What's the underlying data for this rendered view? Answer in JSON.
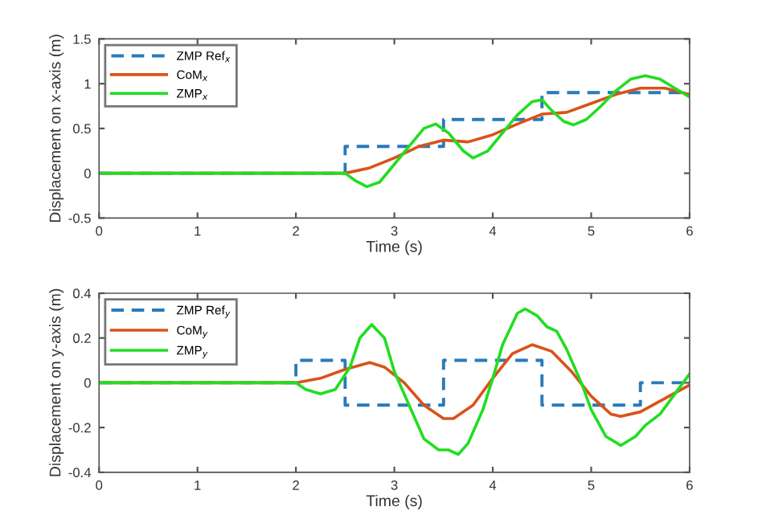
{
  "chart_data": [
    {
      "type": "line",
      "xlabel": "Time (s)",
      "ylabel": "Displacement on x-axis (m)",
      "xlim": [
        0,
        6
      ],
      "xticks": [
        0,
        1,
        2,
        3,
        4,
        5,
        6
      ],
      "ylim": [
        -0.5,
        1.5
      ],
      "yticks": [
        -0.5,
        0,
        0.5,
        1,
        1.5
      ],
      "grid": false,
      "legend": "top left",
      "series": [
        {
          "name": "ZMP Ref$_{x}$",
          "type": "step",
          "line_style": "dashed",
          "color": "#2a7ab8",
          "x": [
            0,
            2.5,
            3.5,
            4.5,
            6
          ],
          "values": [
            0,
            0.3,
            0.6,
            0.9,
            0.9
          ]
        },
        {
          "name": "CoM$_{x}$",
          "line_style": "solid",
          "color": "#d95319",
          "x": [
            0,
            2.5,
            2.75,
            3.0,
            3.25,
            3.5,
            3.75,
            4.0,
            4.25,
            4.5,
            4.75,
            5.0,
            5.25,
            5.5,
            5.75,
            6.0
          ],
          "values": [
            0,
            0,
            0.06,
            0.17,
            0.3,
            0.37,
            0.35,
            0.43,
            0.55,
            0.66,
            0.68,
            0.78,
            0.88,
            0.95,
            0.95,
            0.88
          ]
        },
        {
          "name": "ZMP$_{x}$",
          "line_style": "solid",
          "color": "#22dd22",
          "x": [
            0,
            2.5,
            2.6,
            2.72,
            2.85,
            3.0,
            3.15,
            3.3,
            3.42,
            3.55,
            3.7,
            3.8,
            3.95,
            4.1,
            4.25,
            4.4,
            4.5,
            4.6,
            4.72,
            4.82,
            4.95,
            5.1,
            5.25,
            5.4,
            5.55,
            5.7,
            5.85,
            6.0
          ],
          "values": [
            0,
            0,
            -0.08,
            -0.15,
            -0.1,
            0.1,
            0.3,
            0.5,
            0.55,
            0.45,
            0.25,
            0.17,
            0.25,
            0.45,
            0.65,
            0.8,
            0.82,
            0.7,
            0.58,
            0.54,
            0.6,
            0.75,
            0.92,
            1.05,
            1.09,
            1.05,
            0.95,
            0.85
          ]
        }
      ]
    },
    {
      "type": "line",
      "xlabel": "Time (s)",
      "ylabel": "Displacement on y-axis (m)",
      "xlim": [
        0,
        6
      ],
      "xticks": [
        0,
        1,
        2,
        3,
        4,
        5,
        6
      ],
      "ylim": [
        -0.4,
        0.4
      ],
      "yticks": [
        -0.4,
        -0.2,
        0,
        0.2,
        0.4
      ],
      "grid": false,
      "legend": "top left",
      "series": [
        {
          "name": "ZMP Ref$_{y}$",
          "type": "step",
          "line_style": "dashed",
          "color": "#2a7ab8",
          "x": [
            0,
            2.0,
            2.5,
            3.5,
            4.5,
            5.5,
            6
          ],
          "values": [
            0,
            0.1,
            -0.1,
            0.1,
            -0.1,
            0,
            0
          ]
        },
        {
          "name": "CoM$_{y}$",
          "line_style": "solid",
          "color": "#d95319",
          "x": [
            0,
            2.0,
            2.25,
            2.5,
            2.75,
            2.9,
            3.1,
            3.3,
            3.5,
            3.6,
            3.8,
            4.0,
            4.2,
            4.4,
            4.6,
            4.8,
            5.0,
            5.2,
            5.3,
            5.5,
            5.75,
            6.0
          ],
          "values": [
            0,
            0,
            0.02,
            0.06,
            0.09,
            0.07,
            0.0,
            -0.1,
            -0.16,
            -0.16,
            -0.1,
            0.02,
            0.13,
            0.17,
            0.14,
            0.05,
            -0.06,
            -0.14,
            -0.15,
            -0.13,
            -0.07,
            -0.01
          ]
        },
        {
          "name": "ZMP$_{y}$",
          "line_style": "solid",
          "color": "#22dd22",
          "x": [
            0,
            2.0,
            2.1,
            2.25,
            2.4,
            2.55,
            2.65,
            2.77,
            2.9,
            3.0,
            3.15,
            3.3,
            3.45,
            3.55,
            3.65,
            3.75,
            3.9,
            4.0,
            4.1,
            4.25,
            4.33,
            4.45,
            4.55,
            4.65,
            4.75,
            4.9,
            5.0,
            5.15,
            5.3,
            5.45,
            5.55,
            5.7,
            5.85,
            6.0
          ],
          "values": [
            0,
            0,
            -0.03,
            -0.05,
            -0.03,
            0.07,
            0.2,
            0.26,
            0.2,
            0.05,
            -0.1,
            -0.25,
            -0.3,
            -0.3,
            -0.32,
            -0.27,
            -0.12,
            0.02,
            0.17,
            0.31,
            0.33,
            0.3,
            0.25,
            0.23,
            0.15,
            0.0,
            -0.12,
            -0.24,
            -0.28,
            -0.24,
            -0.19,
            -0.14,
            -0.05,
            0.04
          ]
        }
      ]
    }
  ]
}
